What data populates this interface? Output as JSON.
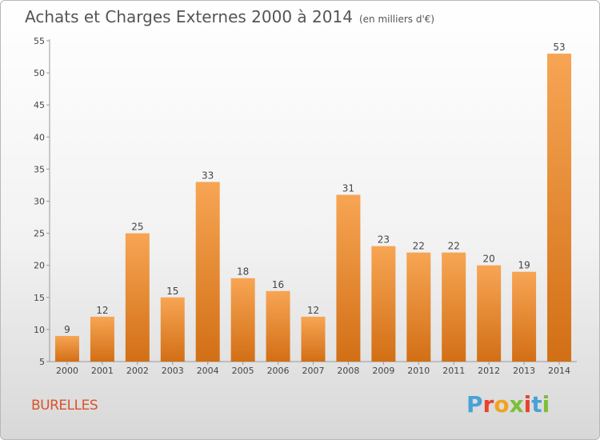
{
  "header": {
    "title": "Achats et Charges Externes 2000 à 2014",
    "subtitle": "(en milliers d'€)"
  },
  "footer": {
    "commune": "BURELLES",
    "logo_text": "Proxiti"
  },
  "colors": {
    "bar_top": "#f7a554",
    "bar_bottom": "#d26f15",
    "logo": [
      "#4aa1d6",
      "#e8432e",
      "#f2a31d",
      "#7bbf3a",
      "#e8432e",
      "#4aa1d6",
      "#7bbf3a"
    ]
  },
  "chart_data": {
    "type": "bar",
    "title": "Achats et Charges Externes 2000 à 2014",
    "subtitle": "(en milliers d'€)",
    "categories": [
      "2000",
      "2001",
      "2002",
      "2003",
      "2004",
      "2005",
      "2006",
      "2007",
      "2008",
      "2009",
      "2010",
      "2011",
      "2012",
      "2013",
      "2014"
    ],
    "values": [
      9,
      12,
      25,
      15,
      33,
      18,
      16,
      12,
      31,
      23,
      22,
      22,
      20,
      19,
      53
    ],
    "ylim": [
      5,
      55
    ],
    "yticks": [
      5,
      10,
      15,
      20,
      25,
      30,
      35,
      40,
      45,
      50,
      55
    ],
    "grid": false,
    "data_labels": true
  }
}
